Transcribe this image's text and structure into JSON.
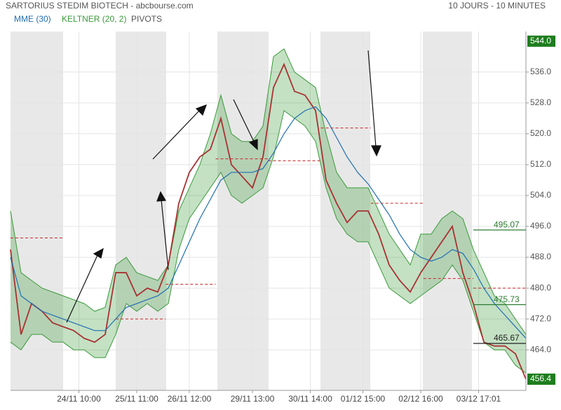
{
  "chart_data": {
    "type": "line",
    "title": "SARTORIUS STEDIM BIOTECH - abcbourse.com",
    "subtitle": "10 JOURS - 10 MINUTES",
    "x": [
      0,
      2,
      4,
      6,
      8,
      10,
      12,
      14,
      16,
      18,
      20,
      22,
      24,
      26,
      28,
      30,
      32,
      34,
      36,
      38,
      40,
      42,
      44,
      46,
      48,
      50,
      52,
      54,
      56,
      58,
      60,
      62,
      64,
      66,
      68,
      70,
      72,
      74,
      76,
      78,
      80,
      82,
      84,
      86,
      88,
      90,
      92,
      94,
      96,
      98
    ],
    "xlim": [
      0,
      98
    ],
    "xticks": [
      {
        "value": 13,
        "label": "24/11 10:00"
      },
      {
        "value": 24,
        "label": "25/11 11:00"
      },
      {
        "value": 34,
        "label": "26/11 12:00"
      },
      {
        "value": 46,
        "label": "29/11 13:00"
      },
      {
        "value": 57,
        "label": "30/11 14:00"
      },
      {
        "value": 67,
        "label": "01/12 15:00"
      },
      {
        "value": 78,
        "label": "02/12 16:00"
      },
      {
        "value": 89,
        "label": "03/12 17:01"
      }
    ],
    "ylim": [
      453.5,
      546.5
    ],
    "yticks": [
      {
        "value": 464,
        "label": "464.0"
      },
      {
        "value": 472,
        "label": "472.0"
      },
      {
        "value": 480,
        "label": "480.0"
      },
      {
        "value": 488,
        "label": "488.0"
      },
      {
        "value": 496,
        "label": "496.0"
      },
      {
        "value": 504,
        "label": "504.0"
      },
      {
        "value": 512,
        "label": "512.0"
      },
      {
        "value": 520,
        "label": "520.0"
      },
      {
        "value": 528,
        "label": "528.0"
      },
      {
        "value": 536,
        "label": "536.0"
      }
    ],
    "grid": true,
    "series": [
      {
        "name": "MME (30)",
        "color": "#1f6fb0",
        "values": [
          488,
          478,
          476,
          474,
          473,
          472,
          471,
          470,
          469,
          469,
          472,
          475,
          476,
          477,
          478,
          480,
          486,
          492,
          498,
          503,
          508,
          510,
          510,
          510,
          511,
          515,
          520,
          524,
          526,
          527,
          524,
          519,
          514,
          510,
          507,
          503,
          499,
          494,
          490,
          488,
          487,
          488,
          490,
          489,
          485,
          480,
          476,
          473,
          470,
          467
        ]
      },
      {
        "name": "KELTNER (20, 2)",
        "color": "#3a9a3a",
        "upper": [
          500,
          484,
          482,
          480,
          479,
          478,
          477,
          476,
          474,
          475,
          486,
          488,
          484,
          483,
          482,
          486,
          500,
          506,
          512,
          520,
          530,
          520,
          518,
          518,
          522,
          540,
          542,
          536,
          534,
          532,
          520,
          510,
          506,
          506,
          506,
          500,
          494,
          490,
          486,
          494,
          494,
          498,
          500,
          498,
          490,
          484,
          478,
          476,
          472,
          468
        ],
        "lower": [
          466,
          464,
          468,
          468,
          466,
          466,
          464,
          464,
          462,
          462,
          468,
          476,
          474,
          476,
          474,
          476,
          490,
          498,
          502,
          506,
          510,
          504,
          502,
          504,
          506,
          514,
          526,
          524,
          522,
          518,
          506,
          498,
          494,
          492,
          492,
          486,
          480,
          478,
          476,
          478,
          480,
          482,
          486,
          482,
          474,
          466,
          464,
          464,
          460,
          458
        ]
      },
      {
        "name": "PIVOTS",
        "color": "#555555"
      }
    ],
    "price": {
      "color": "#a83232",
      "values": [
        490,
        468,
        476,
        474,
        471,
        470,
        469,
        467,
        466,
        468,
        484,
        484,
        478,
        480,
        479,
        486,
        502,
        510,
        514,
        516,
        524,
        512,
        509,
        506,
        514,
        532,
        538,
        531,
        530,
        526,
        508,
        502,
        497,
        500,
        500,
        494,
        486,
        482,
        479,
        484,
        488,
        492,
        496,
        484,
        476,
        466,
        465,
        465,
        463,
        456.4
      ]
    },
    "pivots": {
      "color": "#cc2222",
      "levels": [
        {
          "x0": 0,
          "x1": 10,
          "value": 493
        },
        {
          "x0": 20,
          "x1": 29.5,
          "value": 472
        },
        {
          "x0": 29.5,
          "x1": 39,
          "value": 481
        },
        {
          "x0": 39,
          "x1": 49,
          "value": 513.5
        },
        {
          "x0": 49,
          "x1": 59,
          "value": 513
        },
        {
          "x0": 59,
          "x1": 68.5,
          "value": 521.5
        },
        {
          "x0": 68.5,
          "x1": 78.5,
          "value": 502
        },
        {
          "x0": 78.5,
          "x1": 88,
          "value": 482.5
        },
        {
          "x0": 88,
          "x1": 98,
          "value": 480
        }
      ]
    },
    "levels": [
      {
        "value": 495.07,
        "label": "495.07",
        "color": "#2e7d32"
      },
      {
        "value": 475.73,
        "label": "475.73",
        "color": "#2e7d32"
      },
      {
        "value": 465.67,
        "label": "465.67",
        "color": "#222222"
      }
    ],
    "markers": [
      {
        "value": 544,
        "label": "544.0",
        "color": "#1e7d1e"
      },
      {
        "value": 456.4,
        "label": "456.4",
        "color": "#1e7d1e"
      }
    ]
  }
}
